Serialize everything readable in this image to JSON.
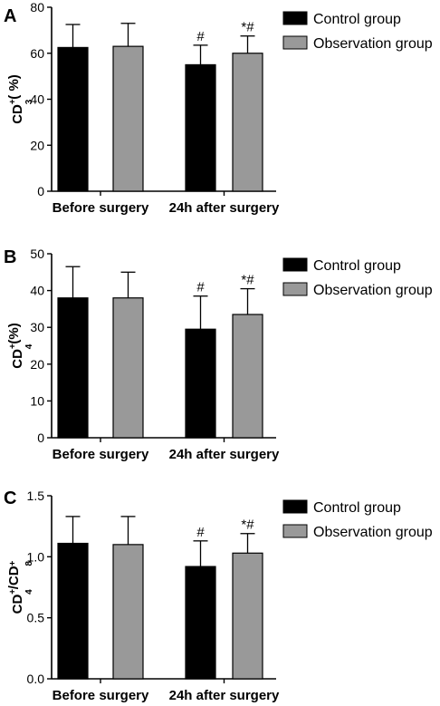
{
  "chart_data": [
    {
      "type": "bar",
      "panel": "A",
      "categories": [
        "Before surgery",
        "24h after surgery"
      ],
      "series": [
        {
          "name": "Control group",
          "values": [
            62.5,
            55.0
          ],
          "errors": [
            10.0,
            8.5
          ]
        },
        {
          "name": "Observation group",
          "values": [
            63.0,
            60.0
          ],
          "errors": [
            10.0,
            7.5
          ]
        }
      ],
      "annotations": [
        [
          "",
          "#"
        ],
        [
          "",
          "*#"
        ]
      ],
      "ylabel": {
        "base": "CD",
        "sub": "3",
        "sup": "+",
        "tail": "( %)"
      },
      "ylim": [
        0,
        80
      ],
      "yticks": [
        "0",
        "20",
        "40",
        "60",
        "80"
      ],
      "legend": "top-right",
      "colors": [
        "#000000",
        "#999999"
      ]
    },
    {
      "type": "bar",
      "panel": "B",
      "categories": [
        "Before surgery",
        "24h after surgery"
      ],
      "series": [
        {
          "name": "Control group",
          "values": [
            38.0,
            29.5
          ],
          "errors": [
            8.5,
            9.0
          ]
        },
        {
          "name": "Observation group",
          "values": [
            38.0,
            33.5
          ],
          "errors": [
            7.0,
            7.0
          ]
        }
      ],
      "annotations": [
        [
          "",
          "#"
        ],
        [
          "",
          "*#"
        ]
      ],
      "ylabel": {
        "base": "CD",
        "sub": "4",
        "sup": "+",
        "tail": "(%)"
      },
      "ylim": [
        0,
        50
      ],
      "yticks": [
        "0",
        "10",
        "20",
        "30",
        "40",
        "50"
      ],
      "legend": "top-right",
      "colors": [
        "#000000",
        "#999999"
      ]
    },
    {
      "type": "bar",
      "panel": "C",
      "categories": [
        "Before surgery",
        "24h after surgery"
      ],
      "series": [
        {
          "name": "Control group",
          "values": [
            1.11,
            0.92
          ],
          "errors": [
            0.22,
            0.21
          ]
        },
        {
          "name": "Observation group",
          "values": [
            1.1,
            1.03
          ],
          "errors": [
            0.23,
            0.16
          ]
        }
      ],
      "annotations": [
        [
          "",
          "#"
        ],
        [
          "",
          "*#"
        ]
      ],
      "ylabel": {
        "base": "CD",
        "sub": "4",
        "sup": "+",
        "tail": "/CD",
        "sub2": "8",
        "sup2": "+"
      },
      "ylim": [
        0,
        1.5
      ],
      "yticks": [
        "0.0",
        "0.5",
        "1.0",
        "1.5"
      ],
      "legend": "top-right",
      "colors": [
        "#000000",
        "#999999"
      ]
    }
  ]
}
